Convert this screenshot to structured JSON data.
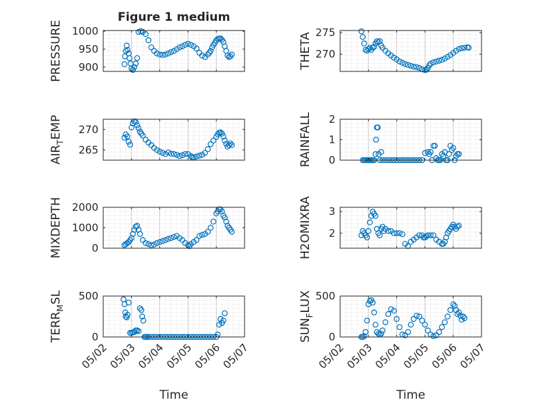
{
  "figure": {
    "title": "Figure 1 medium",
    "xlabel_left": "Time",
    "xlabel_right": "Time"
  },
  "style": {
    "marker_color": "#0072BD",
    "axis_color": "#262626",
    "grid_color": "#BDBDBD"
  },
  "chart_data": [
    {
      "type": "scatter",
      "ylabel": "PRESSURE",
      "yticks": [
        "1000",
        "950",
        "900"
      ],
      "ylim": [
        888,
        1002
      ],
      "xlim": [
        "05/02",
        "05/07"
      ],
      "grid": true,
      "x": [
        2.75,
        2.77,
        2.8,
        2.83,
        2.86,
        2.9,
        2.93,
        2.97,
        3.0,
        3.05,
        3.1,
        3.15,
        3.2,
        3.25,
        3.33,
        3.4,
        3.5,
        3.6,
        3.7,
        3.8,
        3.9,
        4.0,
        4.1,
        4.2,
        4.3,
        4.4,
        4.5,
        4.6,
        4.7,
        4.8,
        4.9,
        5.0,
        5.1,
        5.2,
        5.3,
        5.4,
        5.5,
        5.6,
        5.7,
        5.75,
        5.8,
        5.85,
        5.9,
        5.95,
        6.0,
        6.05,
        6.1,
        6.15,
        6.2,
        6.25,
        6.3,
        6.35,
        6.4,
        6.45,
        6.5,
        6.55
      ],
      "y": [
        908,
        930,
        945,
        960,
        948,
        938,
        925,
        910,
        896,
        892,
        900,
        910,
        925,
        998,
        1000,
        998,
        992,
        975,
        955,
        945,
        938,
        935,
        934,
        935,
        938,
        942,
        945,
        950,
        955,
        958,
        962,
        965,
        962,
        958,
        952,
        940,
        932,
        928,
        935,
        940,
        945,
        955,
        962,
        968,
        974,
        978,
        980,
        980,
        976,
        970,
        958,
        945,
        932,
        928,
        930,
        935
      ]
    },
    {
      "type": "scatter",
      "ylabel": "THETA",
      "yticks": [
        "275",
        "270"
      ],
      "ylim": [
        266,
        275.5
      ],
      "xlim": [
        "05/02",
        "05/07"
      ],
      "grid": true,
      "x": [
        2.75,
        2.8,
        2.85,
        2.9,
        2.95,
        3.0,
        3.05,
        3.1,
        3.15,
        3.2,
        3.25,
        3.3,
        3.35,
        3.4,
        3.45,
        3.5,
        3.6,
        3.7,
        3.8,
        3.9,
        4.0,
        4.1,
        4.2,
        4.3,
        4.4,
        4.5,
        4.6,
        4.7,
        4.8,
        4.9,
        5.0,
        5.05,
        5.1,
        5.15,
        5.2,
        5.3,
        5.4,
        5.5,
        5.6,
        5.7,
        5.8,
        5.9,
        6.0,
        6.1,
        6.2,
        6.3,
        6.4,
        6.5,
        6.55
      ],
      "y": [
        275.3,
        274,
        272.5,
        271,
        270.8,
        271.2,
        271.5,
        271,
        271.5,
        271.7,
        272.5,
        273,
        272.8,
        273,
        272,
        271.5,
        270.8,
        270.2,
        269.7,
        269.2,
        268.8,
        268.3,
        268,
        267.7,
        267.5,
        267.3,
        267.1,
        267,
        266.8,
        266.5,
        266.3,
        266.4,
        266.8,
        267.4,
        267.8,
        268.1,
        268.3,
        268.5,
        268.7,
        269,
        269.4,
        269.8,
        270.3,
        270.8,
        271.2,
        271.4,
        271.5,
        271.6,
        271.5
      ]
    },
    {
      "type": "scatter",
      "ylabel": "AIR_TEMP",
      "yticks": [
        "270",
        "265"
      ],
      "ylim": [
        262.5,
        272.5
      ],
      "xlim": [
        "05/02",
        "05/07"
      ],
      "grid": true,
      "x": [
        2.75,
        2.8,
        2.85,
        2.9,
        2.95,
        3.0,
        3.05,
        3.1,
        3.15,
        3.2,
        3.25,
        3.3,
        3.35,
        3.4,
        3.5,
        3.6,
        3.7,
        3.8,
        3.9,
        4.0,
        4.1,
        4.2,
        4.3,
        4.4,
        4.5,
        4.6,
        4.7,
        4.8,
        4.9,
        5.0,
        5.1,
        5.15,
        5.2,
        5.3,
        5.4,
        5.5,
        5.6,
        5.7,
        5.8,
        5.9,
        6.0,
        6.05,
        6.1,
        6.15,
        6.2,
        6.25,
        6.3,
        6.35,
        6.4,
        6.45,
        6.5,
        6.55
      ],
      "y": [
        268,
        268.8,
        268.3,
        267,
        266.3,
        270.5,
        271.5,
        272,
        271.8,
        271,
        270.3,
        269.5,
        269,
        268.5,
        267.5,
        266.8,
        266.2,
        265.5,
        265,
        264.6,
        264.3,
        264,
        264.4,
        264.1,
        264,
        263.8,
        263.5,
        263.7,
        264,
        264,
        263.5,
        263.2,
        263.2,
        263.4,
        263.6,
        263.8,
        264.3,
        265.2,
        266.4,
        267.3,
        268.2,
        268.8,
        269.2,
        269.3,
        269,
        268.3,
        267.3,
        266.5,
        265.8,
        266.2,
        266.6,
        266.2
      ]
    },
    {
      "type": "scatter",
      "ylabel": "RAINFALL",
      "yticks": [
        "2",
        "1",
        "0"
      ],
      "ylim": [
        0,
        2
      ],
      "xlim": [
        "05/02",
        "05/07"
      ],
      "grid": true,
      "x": [
        2.8,
        2.85,
        2.9,
        2.95,
        3.0,
        3.05,
        3.1,
        3.15,
        3.2,
        3.25,
        3.27,
        3.3,
        3.33,
        3.36,
        3.4,
        3.45,
        3.5,
        3.6,
        3.7,
        3.8,
        3.9,
        4.0,
        4.1,
        4.2,
        4.3,
        4.4,
        4.5,
        4.6,
        4.7,
        4.8,
        4.9,
        5.0,
        5.1,
        5.15,
        5.2,
        5.25,
        5.3,
        5.35,
        5.4,
        5.45,
        5.5,
        5.55,
        5.6,
        5.65,
        5.7,
        5.75,
        5.8,
        5.85,
        5.9,
        5.95,
        6.0,
        6.05,
        6.1,
        6.15,
        6.2
      ],
      "y": [
        0,
        0,
        0,
        0,
        0,
        0,
        0,
        0,
        0,
        0.3,
        1.0,
        1.6,
        1.6,
        0.3,
        0,
        0.4,
        0,
        0,
        0,
        0,
        0,
        0,
        0,
        0,
        0,
        0,
        0,
        0,
        0,
        0,
        0,
        0.35,
        0.4,
        0.3,
        0.4,
        0,
        0.7,
        0.7,
        0.1,
        0,
        0,
        0,
        0.3,
        0.2,
        0.4,
        0,
        0,
        0.3,
        0.7,
        0.5,
        0.6,
        0,
        0.2,
        0.3,
        0.3
      ]
    },
    {
      "type": "scatter",
      "ylabel": "MIXDEPTH",
      "yticks": [
        "2000",
        "1000",
        "0"
      ],
      "ylim": [
        0,
        2000
      ],
      "xlim": [
        "05/02",
        "05/07"
      ],
      "grid": true,
      "x": [
        2.75,
        2.8,
        2.85,
        2.9,
        2.95,
        3.0,
        3.05,
        3.1,
        3.15,
        3.2,
        3.25,
        3.3,
        3.4,
        3.5,
        3.6,
        3.7,
        3.8,
        3.9,
        4.0,
        4.1,
        4.2,
        4.3,
        4.4,
        4.5,
        4.6,
        4.7,
        4.8,
        4.9,
        5.0,
        5.05,
        5.1,
        5.2,
        5.3,
        5.4,
        5.5,
        5.6,
        5.7,
        5.8,
        5.9,
        6.0,
        6.05,
        6.1,
        6.15,
        6.2,
        6.25,
        6.3,
        6.35,
        6.4,
        6.45,
        6.5,
        6.55
      ],
      "y": [
        150,
        200,
        250,
        300,
        400,
        500,
        700,
        900,
        1050,
        1100,
        900,
        700,
        400,
        250,
        200,
        150,
        180,
        250,
        300,
        350,
        400,
        450,
        500,
        550,
        600,
        500,
        400,
        250,
        150,
        100,
        200,
        300,
        400,
        600,
        650,
        700,
        800,
        1000,
        1300,
        1700,
        1800,
        1900,
        1900,
        1800,
        1600,
        1500,
        1300,
        1100,
        1000,
        900,
        800
      ]
    },
    {
      "type": "scatter",
      "ylabel": "H2OMIXRA",
      "yticks": [
        "3",
        "2"
      ],
      "ylim": [
        1.3,
        3.2
      ],
      "xlim": [
        "05/02",
        "05/07"
      ],
      "grid": true,
      "x": [
        2.75,
        2.8,
        2.85,
        2.9,
        2.95,
        3.0,
        3.05,
        3.1,
        3.15,
        3.2,
        3.25,
        3.3,
        3.35,
        3.4,
        3.45,
        3.5,
        3.55,
        3.6,
        3.7,
        3.8,
        3.9,
        4.0,
        4.1,
        4.2,
        4.3,
        4.4,
        4.5,
        4.6,
        4.7,
        4.8,
        4.9,
        4.95,
        5.0,
        5.05,
        5.1,
        5.2,
        5.3,
        5.4,
        5.5,
        5.6,
        5.65,
        5.7,
        5.75,
        5.8,
        5.85,
        5.9,
        5.95,
        6.0,
        6.05,
        6.1,
        6.15,
        6.2
      ],
      "y": [
        1.9,
        2.1,
        2.0,
        1.9,
        1.8,
        2.1,
        2.5,
        2.8,
        3.0,
        2.9,
        2.8,
        2.2,
        2.0,
        1.9,
        2.2,
        2.3,
        2.1,
        2.2,
        2.1,
        2.1,
        2.0,
        2.0,
        2.0,
        1.95,
        1.5,
        1.4,
        1.6,
        1.7,
        1.8,
        1.9,
        1.9,
        1.8,
        1.8,
        1.85,
        1.9,
        1.9,
        1.9,
        1.7,
        1.6,
        1.5,
        1.5,
        1.6,
        1.8,
        2.0,
        2.1,
        2.2,
        2.3,
        2.4,
        2.3,
        2.2,
        2.3,
        2.35
      ]
    },
    {
      "type": "scatter",
      "ylabel": "TERR_MSL",
      "yticks": [
        "500",
        "0"
      ],
      "ylim": [
        0,
        500
      ],
      "xlim": [
        "05/02",
        "05/07"
      ],
      "xticks": [
        "05/02",
        "05/03",
        "05/04",
        "05/05",
        "05/06",
        "05/07"
      ],
      "grid": true,
      "x": [
        2.72,
        2.75,
        2.78,
        2.8,
        2.83,
        2.86,
        2.9,
        2.95,
        3.0,
        3.05,
        3.1,
        3.15,
        3.2,
        3.25,
        3.3,
        3.35,
        3.38,
        3.42,
        3.46,
        3.5,
        3.55,
        3.6,
        3.7,
        3.8,
        3.9,
        4.0,
        4.1,
        4.2,
        4.3,
        4.4,
        4.5,
        4.6,
        4.7,
        4.8,
        4.9,
        5.0,
        5.1,
        5.2,
        5.3,
        5.4,
        5.5,
        5.6,
        5.7,
        5.8,
        5.9,
        6.0,
        6.05,
        6.1,
        6.15,
        6.2,
        6.25,
        6.3
      ],
      "y": [
        460,
        400,
        300,
        250,
        240,
        270,
        420,
        50,
        50,
        55,
        60,
        80,
        80,
        70,
        350,
        330,
        250,
        200,
        0,
        0,
        0,
        0,
        0,
        0,
        0,
        0,
        0,
        0,
        0,
        0,
        0,
        0,
        0,
        0,
        0,
        0,
        0,
        0,
        0,
        0,
        0,
        0,
        0,
        0,
        0,
        0,
        30,
        150,
        220,
        170,
        200,
        290
      ]
    },
    {
      "type": "scatter",
      "ylabel": "SUN_FLUX",
      "yticks": [
        "500",
        "0"
      ],
      "ylim": [
        0,
        500
      ],
      "xlim": [
        "05/02",
        "05/07"
      ],
      "xticks": [
        "05/02",
        "05/03",
        "05/04",
        "05/05",
        "05/06",
        "05/07"
      ],
      "grid": true,
      "x": [
        2.75,
        2.8,
        2.85,
        2.9,
        2.95,
        3.0,
        3.05,
        3.1,
        3.15,
        3.2,
        3.25,
        3.3,
        3.35,
        3.4,
        3.45,
        3.5,
        3.6,
        3.7,
        3.8,
        3.9,
        4.0,
        4.1,
        4.2,
        4.3,
        4.4,
        4.5,
        4.6,
        4.7,
        4.8,
        4.9,
        5.0,
        5.1,
        5.2,
        5.3,
        5.4,
        5.5,
        5.6,
        5.7,
        5.8,
        5.9,
        6.0,
        6.05,
        6.1,
        6.15,
        6.2,
        6.25,
        6.3,
        6.35,
        6.4
      ],
      "y": [
        0,
        0,
        10,
        60,
        200,
        400,
        440,
        450,
        420,
        300,
        150,
        60,
        40,
        30,
        40,
        80,
        180,
        280,
        340,
        320,
        220,
        120,
        30,
        20,
        60,
        150,
        220,
        260,
        250,
        200,
        150,
        80,
        30,
        10,
        20,
        60,
        120,
        180,
        250,
        330,
        400,
        380,
        330,
        280,
        300,
        260,
        210,
        250,
        230
      ]
    }
  ]
}
